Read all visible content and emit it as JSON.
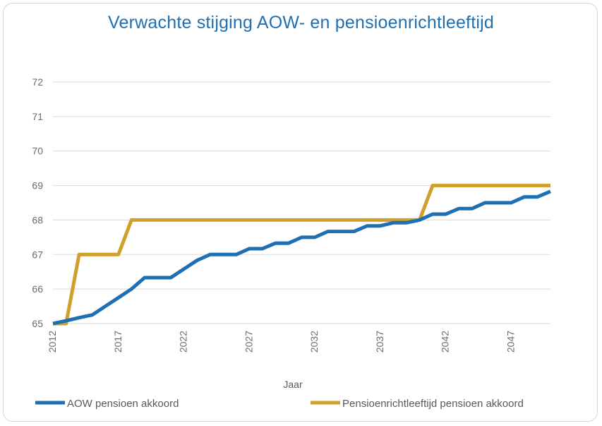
{
  "chart_data": {
    "type": "line",
    "title": "Verwachte stijging  AOW- en pensioenrichtleeftijd",
    "xlabel": "Jaar",
    "ylabel": "",
    "xlim": [
      2012,
      2050
    ],
    "ylim": [
      65,
      72
    ],
    "y_ticks": [
      65,
      66,
      67,
      68,
      69,
      70,
      71,
      72
    ],
    "x_ticks": [
      2012,
      2017,
      2022,
      2027,
      2032,
      2037,
      2042,
      2047
    ],
    "grid": true,
    "legend_position": "bottom",
    "series": [
      {
        "name": "AOW pensioen akkoord",
        "color": "#1f6fb3",
        "x": [
          2012,
          2013,
          2014,
          2015,
          2016,
          2017,
          2018,
          2019,
          2020,
          2021,
          2022,
          2023,
          2024,
          2025,
          2026,
          2027,
          2028,
          2029,
          2030,
          2031,
          2032,
          2033,
          2034,
          2035,
          2036,
          2037,
          2038,
          2039,
          2040,
          2041,
          2042,
          2043,
          2044,
          2045,
          2046,
          2047,
          2048,
          2049,
          2050
        ],
        "y": [
          65,
          65.08,
          65.17,
          65.25,
          65.5,
          65.75,
          66.0,
          66.33,
          66.33,
          66.33,
          66.58,
          66.83,
          67.0,
          67.0,
          67.0,
          67.17,
          67.17,
          67.33,
          67.33,
          67.5,
          67.5,
          67.67,
          67.67,
          67.67,
          67.83,
          67.83,
          67.92,
          67.92,
          68.0,
          68.17,
          68.17,
          68.33,
          68.33,
          68.5,
          68.5,
          68.5,
          68.67,
          68.67,
          68.83
        ]
      },
      {
        "name": "Pensioenrichtleeftijd pensioen akkoord",
        "color": "#d0a02c",
        "x": [
          2012,
          2013,
          2014,
          2015,
          2016,
          2017,
          2018,
          2019,
          2020,
          2021,
          2022,
          2023,
          2024,
          2025,
          2026,
          2027,
          2028,
          2029,
          2030,
          2031,
          2032,
          2033,
          2034,
          2035,
          2036,
          2037,
          2038,
          2039,
          2040,
          2041,
          2042,
          2043,
          2044,
          2045,
          2046,
          2047,
          2048,
          2049,
          2050
        ],
        "y": [
          65,
          65,
          67,
          67,
          67,
          67,
          68,
          68,
          68,
          68,
          68,
          68,
          68,
          68,
          68,
          68,
          68,
          68,
          68,
          68,
          68,
          68,
          68,
          68,
          68,
          68,
          68,
          68,
          68,
          69,
          69,
          69,
          69,
          69,
          69,
          69,
          69,
          69,
          69
        ]
      }
    ]
  }
}
